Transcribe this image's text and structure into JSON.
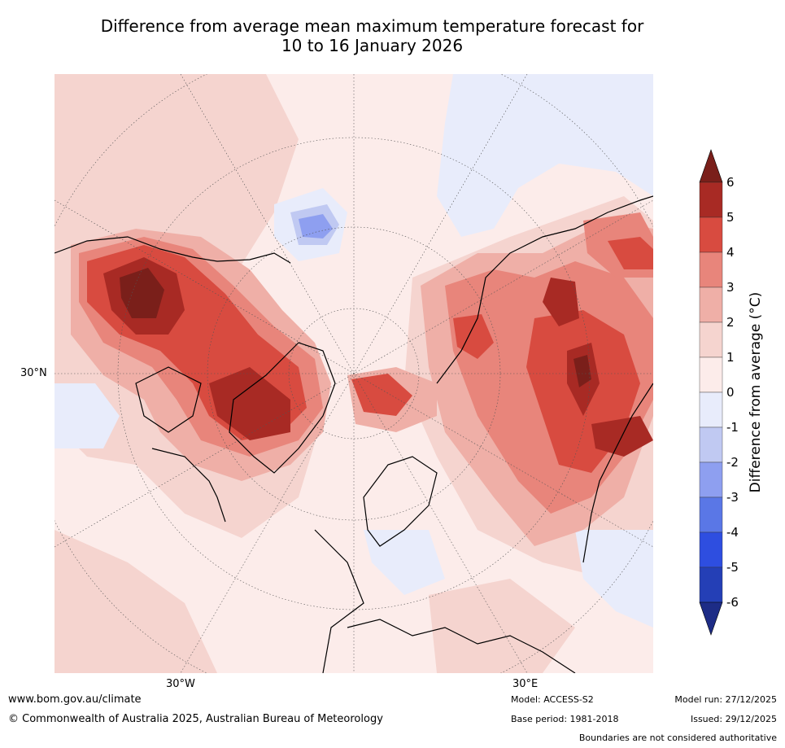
{
  "title": {
    "line1": "Difference from average mean maximum temperature forecast for",
    "line2": "10 to 16 January 2026"
  },
  "map": {
    "projection": "polar stereographic, northern hemisphere",
    "graticule_labels": {
      "lat": "30°N",
      "lon_west": "30°W",
      "lon_east": "30°E"
    }
  },
  "legend": {
    "title": "Difference from average (°C)",
    "ticks": [
      "6",
      "5",
      "4",
      "3",
      "2",
      "1",
      "0",
      "-1",
      "-2",
      "-3",
      "-4",
      "-5",
      "-6"
    ],
    "colors": {
      "gt6": "#7a1f1a",
      "5_6": "#a82a24",
      "4_5": "#d84b40",
      "3_4": "#e8857b",
      "2_3": "#efafa7",
      "1_2": "#f5d4cf",
      "0_1": "#fcecea",
      "m1_0": "#e8ecfb",
      "m2_m1": "#c0c9f2",
      "m3_m2": "#8e9ff0",
      "m4_m3": "#5a77e6",
      "m5_m4": "#2e4ee0",
      "m6_m5": "#243fb6",
      "lt_m6": "#1d2c86"
    }
  },
  "footer": {
    "website": "www.bom.gov.au/climate",
    "copyright": "© Commonwealth of Australia 2025, Australian Bureau of Meteorology",
    "model": "Model: ACCESS-S2",
    "base_period": "Base period: 1981-2018",
    "model_run": "Model run: 27/12/2025",
    "issued": "Issued: 29/12/2025",
    "disclaimer": "Boundaries are not considered authoritative"
  }
}
